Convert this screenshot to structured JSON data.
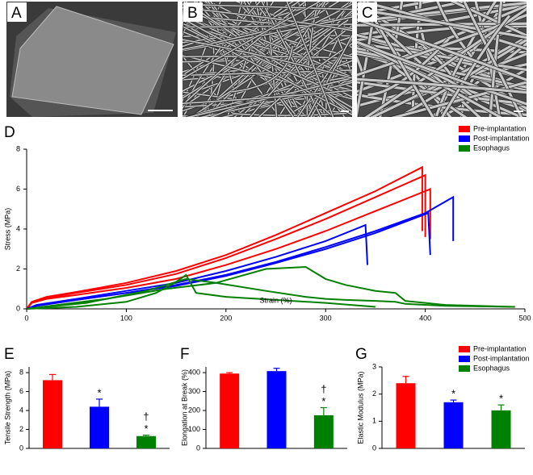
{
  "images": [
    {
      "label": "A"
    },
    {
      "label": "B"
    },
    {
      "label": "C"
    }
  ],
  "chart_data": [
    {
      "type": "line",
      "panel": "D",
      "x_label": "Strain (%)",
      "y_label": "Stress (MPa)",
      "xlim": [
        0,
        500
      ],
      "ylim": [
        0,
        8
      ],
      "xticks": [
        0,
        100,
        200,
        300,
        400,
        500
      ],
      "yticks": [
        0,
        2,
        4,
        6,
        8
      ],
      "legend": "top-right",
      "series": [
        {
          "name": "Pre-implantation",
          "color": "#ff0000",
          "curves": [
            {
              "x": [
                0,
                5,
                20,
                50,
                100,
                150,
                200,
                250,
                300,
                350,
                397,
                397
              ],
              "values": [
                0,
                0.35,
                0.6,
                0.85,
                1.3,
                1.9,
                2.7,
                3.7,
                4.8,
                5.9,
                7.1,
                3.9
              ]
            },
            {
              "x": [
                0,
                5,
                20,
                50,
                100,
                150,
                200,
                250,
                300,
                350,
                400,
                400
              ],
              "values": [
                0,
                0.3,
                0.55,
                0.8,
                1.2,
                1.75,
                2.55,
                3.5,
                4.5,
                5.6,
                6.7,
                3.6
              ]
            },
            {
              "x": [
                0,
                5,
                20,
                50,
                100,
                150,
                200,
                250,
                300,
                350,
                400,
                405,
                405
              ],
              "values": [
                0,
                0.3,
                0.5,
                0.7,
                1.05,
                1.5,
                2.2,
                3.0,
                3.9,
                4.9,
                5.9,
                6.0,
                3.5
              ]
            }
          ]
        },
        {
          "name": "Post-implantation",
          "color": "#0000ff",
          "curves": [
            {
              "x": [
                0,
                10,
                50,
                100,
                150,
                200,
                250,
                300,
                340,
                342
              ],
              "values": [
                0,
                0.2,
                0.5,
                0.9,
                1.3,
                1.9,
                2.6,
                3.4,
                4.2,
                2.2
              ]
            },
            {
              "x": [
                0,
                10,
                50,
                100,
                150,
                200,
                250,
                300,
                350,
                403,
                405
              ],
              "values": [
                0,
                0.15,
                0.45,
                0.8,
                1.15,
                1.65,
                2.3,
                3.0,
                3.8,
                4.8,
                2.7
              ]
            },
            {
              "x": [
                0,
                10,
                50,
                100,
                150,
                200,
                250,
                300,
                350,
                400,
                428,
                428
              ],
              "values": [
                0,
                0.15,
                0.45,
                0.8,
                1.2,
                1.7,
                2.35,
                3.1,
                3.9,
                4.8,
                5.6,
                3.4
              ]
            }
          ]
        },
        {
          "name": "Esophagus",
          "color": "#008000",
          "curves": [
            {
              "x": [
                0,
                50,
                100,
                130,
                150,
                160,
                170,
                200,
                250,
                300,
                350
              ],
              "values": [
                0,
                0.1,
                0.35,
                0.8,
                1.35,
                1.7,
                0.8,
                0.6,
                0.45,
                0.3,
                0.1
              ]
            },
            {
              "x": [
                0,
                60,
                120,
                160,
                190,
                240,
                280,
                300,
                320,
                350,
                370,
                380,
                420,
                490
              ],
              "values": [
                0,
                0.3,
                0.9,
                1.5,
                1.3,
                0.9,
                0.6,
                0.5,
                0.45,
                0.4,
                0.35,
                0.25,
                0.15,
                0.1
              ]
            },
            {
              "x": [
                0,
                80,
                140,
                190,
                240,
                280,
                300,
                320,
                350,
                370,
                380,
                420,
                490
              ],
              "values": [
                0,
                0.5,
                1.0,
                1.3,
                2.0,
                2.1,
                1.5,
                1.2,
                0.9,
                0.8,
                0.4,
                0.2,
                0.1
              ]
            }
          ]
        }
      ]
    },
    {
      "type": "bar",
      "panel": "E",
      "y_label": "Tensile Strength (MPa)",
      "ylim": [
        0,
        8.6
      ],
      "yticks": [
        0,
        2,
        4,
        6,
        8
      ],
      "colors": [
        "#ff0000",
        "#0000ff",
        "#008000"
      ],
      "values": [
        7.2,
        4.4,
        1.3
      ],
      "errors": [
        0.6,
        0.8,
        0.1
      ],
      "markers": [
        null,
        "*",
        "*"
      ],
      "daggers": [
        null,
        null,
        "†"
      ]
    },
    {
      "type": "bar",
      "panel": "F",
      "y_label": "Elongation at Break (%)",
      "ylim": [
        0,
        430
      ],
      "yticks": [
        0,
        100,
        200,
        300,
        400
      ],
      "colors": [
        "#ff0000",
        "#0000ff",
        "#008000"
      ],
      "values": [
        395,
        408,
        175
      ],
      "errors": [
        5,
        15,
        40
      ],
      "markers": [
        null,
        null,
        "*"
      ],
      "daggers": [
        null,
        null,
        "†"
      ]
    },
    {
      "type": "bar",
      "panel": "G",
      "y_label": "Elastic Modulus (MPa)",
      "ylim": [
        0,
        3
      ],
      "yticks": [
        0,
        1,
        2,
        3
      ],
      "colors": [
        "#ff0000",
        "#0000ff",
        "#008000"
      ],
      "values": [
        2.4,
        1.7,
        1.4
      ],
      "errors": [
        0.25,
        0.08,
        0.2
      ],
      "markers": [
        null,
        "*",
        "*"
      ],
      "daggers": [
        null,
        null,
        null
      ],
      "legend": "top-right",
      "legend_names": [
        "Pre-implantation",
        "Post-implantation",
        "Esophagus"
      ]
    }
  ]
}
